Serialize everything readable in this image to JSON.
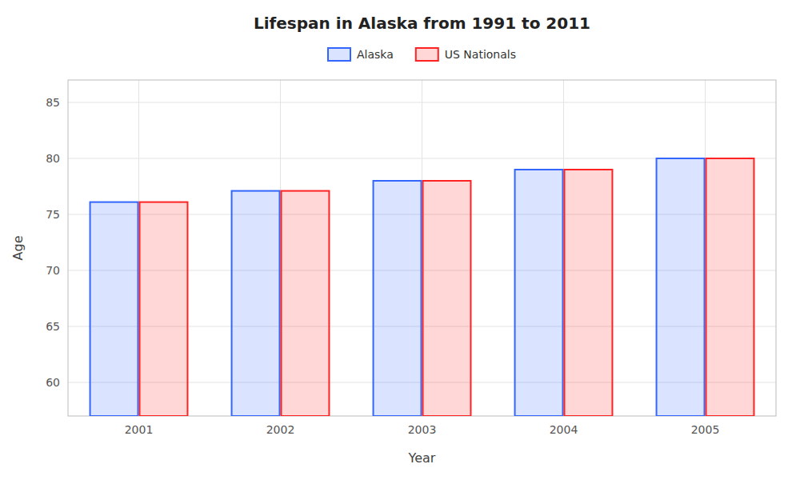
{
  "chart_data": {
    "type": "bar",
    "title": "Lifespan in Alaska from 1991 to 2011",
    "x_label": "Year",
    "y_label": "Age",
    "categories": [
      "2001",
      "2002",
      "2003",
      "2004",
      "2005"
    ],
    "series": [
      {
        "name": "Alaska",
        "color": "#3366ff",
        "values": [
          76.1,
          77.1,
          78.0,
          79.0,
          80.0
        ]
      },
      {
        "name": "US Nationals",
        "color": "#ff2222",
        "values": [
          76.1,
          77.1,
          78.0,
          79.0,
          80.0
        ]
      }
    ],
    "ylim": [
      57,
      87
    ],
    "yticks": [
      60,
      65,
      70,
      75,
      80,
      85
    ],
    "grid": true,
    "legend": "top"
  }
}
